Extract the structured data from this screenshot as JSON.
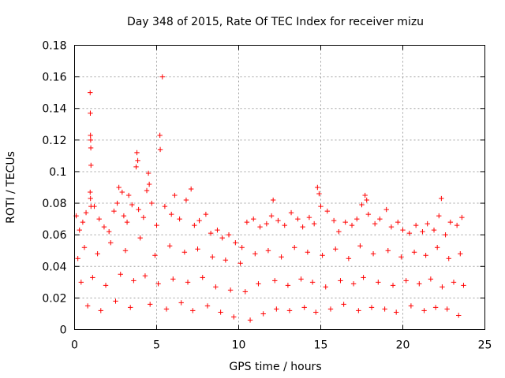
{
  "chart_data": {
    "type": "scatter",
    "title": "Day 348 of 2015, Rate Of TEC Index for receiver mizu",
    "xlabel": "GPS time / hours",
    "ylabel": "ROTI / TECUs",
    "xlim": [
      0,
      25
    ],
    "ylim": [
      0,
      0.18
    ],
    "x_ticks": [
      0,
      5,
      10,
      15,
      20,
      25
    ],
    "y_ticks": [
      0,
      0.02,
      0.04,
      0.06,
      0.08,
      0.1,
      0.12,
      0.14,
      0.16,
      0.18
    ],
    "x_tick_labels": [
      "0",
      "5",
      "10",
      "15",
      "20",
      "25"
    ],
    "y_tick_labels": [
      "0",
      "0.02",
      "0.04",
      "0.06",
      "0.08",
      "0.1",
      "0.12",
      "0.14",
      "0.16",
      "0.18"
    ],
    "grid": true,
    "marker": "+",
    "color": "#ff0000",
    "series": [
      {
        "name": "ROTI",
        "x": [
          0.95,
          0.96,
          0.97,
          0.98,
          0.99,
          1.0,
          0.95,
          0.97,
          1.0,
          5.35,
          5.2,
          5.22,
          3.8,
          3.85,
          3.75,
          4.5,
          4.55,
          4.4,
          2.7,
          2.9,
          3.3,
          7.1,
          14.8,
          14.9,
          17.7,
          17.8,
          22.35,
          12.1,
          0.1,
          0.3,
          0.5,
          0.7,
          1.2,
          1.5,
          1.8,
          2.1,
          2.4,
          2.6,
          3.0,
          3.2,
          3.5,
          3.9,
          4.2,
          4.7,
          5.0,
          5.5,
          5.9,
          6.1,
          6.4,
          6.8,
          7.3,
          7.6,
          8.0,
          8.3,
          8.7,
          9.0,
          9.4,
          9.8,
          10.2,
          10.5,
          10.9,
          11.3,
          11.7,
          12.0,
          12.4,
          12.8,
          13.2,
          13.6,
          13.9,
          14.3,
          14.6,
          15.0,
          15.4,
          15.8,
          16.1,
          16.5,
          16.9,
          17.2,
          17.5,
          17.9,
          18.3,
          18.6,
          19.0,
          19.3,
          19.7,
          20.0,
          20.4,
          20.8,
          21.2,
          21.5,
          21.9,
          22.2,
          22.6,
          22.9,
          23.3,
          23.6,
          0.2,
          0.6,
          1.4,
          2.2,
          3.1,
          4.0,
          4.9,
          5.8,
          6.7,
          7.5,
          8.4,
          9.2,
          10.1,
          11.0,
          11.8,
          12.6,
          13.4,
          14.2,
          15.1,
          15.9,
          16.7,
          17.4,
          18.2,
          19.1,
          19.9,
          20.7,
          21.4,
          22.1,
          22.8,
          23.5,
          0.4,
          1.1,
          1.9,
          2.8,
          3.6,
          4.3,
          5.1,
          6.0,
          6.9,
          7.8,
          8.6,
          9.5,
          10.4,
          11.2,
          12.2,
          13.0,
          13.8,
          14.5,
          15.3,
          16.2,
          17.0,
          17.6,
          18.5,
          19.4,
          20.2,
          21.0,
          21.7,
          22.4,
          23.1,
          23.7,
          0.8,
          1.6,
          2.5,
          3.4,
          4.6,
          5.6,
          6.5,
          7.2,
          8.1,
          8.9,
          9.7,
          10.7,
          11.5,
          12.3,
          13.1,
          14.0,
          14.7,
          15.6,
          16.4,
          17.3,
          18.1,
          18.9,
          19.6,
          20.5,
          21.3,
          22.0,
          22.7,
          23.4
        ],
        "y": [
          0.15,
          0.137,
          0.123,
          0.12,
          0.115,
          0.104,
          0.087,
          0.083,
          0.078,
          0.16,
          0.123,
          0.114,
          0.112,
          0.107,
          0.103,
          0.099,
          0.092,
          0.088,
          0.09,
          0.087,
          0.085,
          0.089,
          0.09,
          0.086,
          0.085,
          0.082,
          0.083,
          0.082,
          0.072,
          0.063,
          0.068,
          0.074,
          0.078,
          0.07,
          0.065,
          0.062,
          0.075,
          0.08,
          0.072,
          0.068,
          0.079,
          0.076,
          0.071,
          0.08,
          0.066,
          0.078,
          0.073,
          0.085,
          0.07,
          0.082,
          0.066,
          0.069,
          0.073,
          0.061,
          0.063,
          0.058,
          0.06,
          0.055,
          0.052,
          0.068,
          0.07,
          0.065,
          0.067,
          0.072,
          0.069,
          0.066,
          0.074,
          0.07,
          0.065,
          0.071,
          0.067,
          0.078,
          0.075,
          0.069,
          0.062,
          0.068,
          0.066,
          0.07,
          0.079,
          0.073,
          0.067,
          0.07,
          0.076,
          0.065,
          0.068,
          0.063,
          0.061,
          0.066,
          0.062,
          0.067,
          0.063,
          0.072,
          0.06,
          0.068,
          0.066,
          0.071,
          0.045,
          0.052,
          0.048,
          0.055,
          0.05,
          0.058,
          0.047,
          0.053,
          0.049,
          0.051,
          0.046,
          0.044,
          0.042,
          0.048,
          0.05,
          0.046,
          0.052,
          0.049,
          0.047,
          0.051,
          0.045,
          0.053,
          0.048,
          0.05,
          0.046,
          0.049,
          0.047,
          0.052,
          0.045,
          0.048,
          0.03,
          0.033,
          0.028,
          0.035,
          0.031,
          0.034,
          0.029,
          0.032,
          0.03,
          0.033,
          0.027,
          0.025,
          0.024,
          0.029,
          0.031,
          0.028,
          0.032,
          0.03,
          0.027,
          0.031,
          0.029,
          0.033,
          0.03,
          0.028,
          0.031,
          0.029,
          0.032,
          0.027,
          0.03,
          0.028,
          0.015,
          0.012,
          0.018,
          0.014,
          0.016,
          0.013,
          0.017,
          0.012,
          0.015,
          0.011,
          0.008,
          0.006,
          0.01,
          0.013,
          0.012,
          0.014,
          0.011,
          0.013,
          0.016,
          0.012,
          0.014,
          0.013,
          0.011,
          0.015,
          0.012,
          0.014,
          0.013,
          0.009
        ]
      }
    ]
  }
}
